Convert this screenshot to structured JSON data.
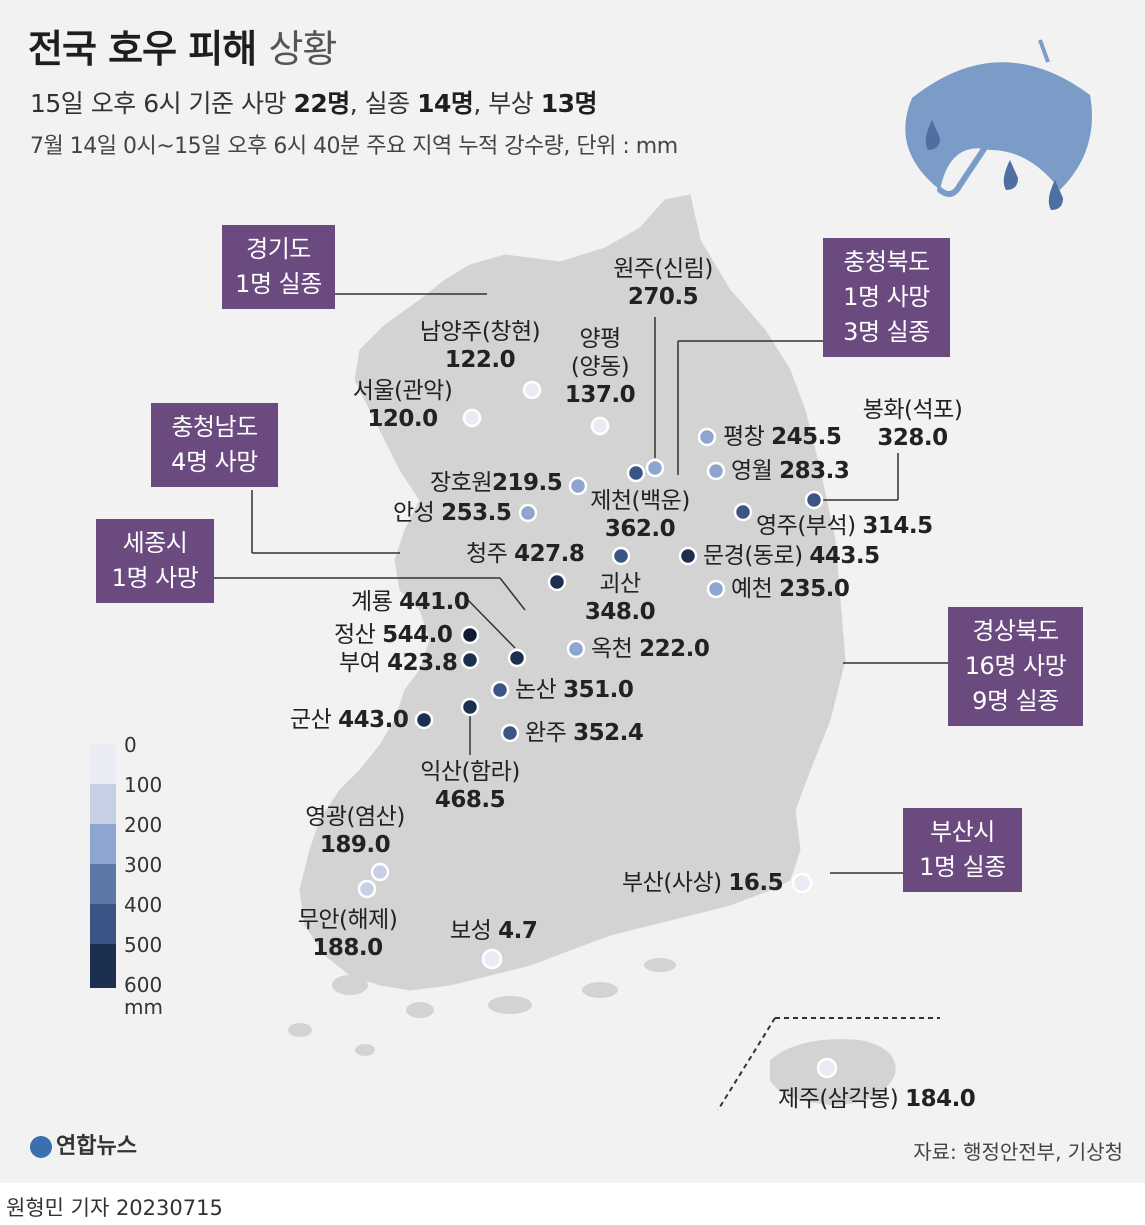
{
  "header": {
    "title_bold": "전국 호우 피해",
    "title_light": "상황",
    "sub1_pre": "15일 오후 6시 기준 사망 ",
    "sub1_dead": "22명",
    "sub1_mid1": ", 실종 ",
    "sub1_missing": "14명",
    "sub1_mid2": ", 부상 ",
    "sub1_injured": "13명",
    "sub2": "7월 14일 0시~15일 오후 6시 40분 주요 지역 누적 강수량, 단위 : mm"
  },
  "colors": {
    "province_box": "#6b4a80",
    "land": "#d3d3d3",
    "umbrella": "#7a9cc6",
    "scale": [
      "#e9ecf4",
      "#c6d0e4",
      "#8ea6cf",
      "#5b77a5",
      "#3a5485",
      "#1d2f4f"
    ]
  },
  "boxes": [
    {
      "id": "gyeonggi",
      "line1": "경기도",
      "line2": "1명 실종"
    },
    {
      "id": "chungbuk",
      "line1": "충청북도",
      "line2": "1명 사망",
      "line3": "3명 실종"
    },
    {
      "id": "chungnam",
      "line1": "충청남도",
      "line2": "4명 사망"
    },
    {
      "id": "sejong",
      "line1": "세종시",
      "line2": "1명 사망"
    },
    {
      "id": "gyeongbuk",
      "line1": "경상북도",
      "line2": "16명 사망",
      "line3": "9명 실종"
    },
    {
      "id": "busan",
      "line1": "부산시",
      "line2": "1명 실종"
    }
  ],
  "stations": [
    {
      "name": "원주(신림)",
      "value": "270.5"
    },
    {
      "name": "남양주(창현)",
      "value": "122.0"
    },
    {
      "name": "양평",
      "name2": "(양동)",
      "value": "137.0"
    },
    {
      "name": "서울(관악)",
      "value": "120.0"
    },
    {
      "name": "평창",
      "value": "245.5"
    },
    {
      "name": "봉화(석포)",
      "value": "328.0"
    },
    {
      "name": "영월",
      "value": "283.3"
    },
    {
      "name": "장호원",
      "value": "219.5"
    },
    {
      "name": "제천(백운)",
      "value": "362.0"
    },
    {
      "name": "안성",
      "value": "253.5"
    },
    {
      "name": "영주(부석)",
      "value": "314.5"
    },
    {
      "name": "청주",
      "value": "427.8"
    },
    {
      "name": "문경(동로)",
      "value": "443.5"
    },
    {
      "name": "괴산",
      "value": "348.0"
    },
    {
      "name": "예천",
      "value": "235.0"
    },
    {
      "name": "계룡",
      "value": "441.0"
    },
    {
      "name": "정산",
      "value": "544.0"
    },
    {
      "name": "부여",
      "value": "423.8"
    },
    {
      "name": "옥천",
      "value": "222.0"
    },
    {
      "name": "논산",
      "value": "351.0"
    },
    {
      "name": "군산",
      "value": "443.0"
    },
    {
      "name": "완주",
      "value": "352.4"
    },
    {
      "name": "익산(함라)",
      "value": "468.5"
    },
    {
      "name": "영광(염산)",
      "value": "189.0"
    },
    {
      "name": "무안(해제)",
      "value": "188.0"
    },
    {
      "name": "부산(사상)",
      "value": "16.5"
    },
    {
      "name": "보성",
      "value": "4.7"
    },
    {
      "name": "제주(삼각봉)",
      "value": "184.0"
    }
  ],
  "legend": {
    "ticks": [
      "0",
      "100",
      "200",
      "300",
      "400",
      "500",
      "600"
    ],
    "unit": "mm"
  },
  "footer": {
    "logo": "연합뉴스",
    "source": "자료: 행정안전부, 기상청",
    "credit": "원형민 기자  20230715"
  }
}
